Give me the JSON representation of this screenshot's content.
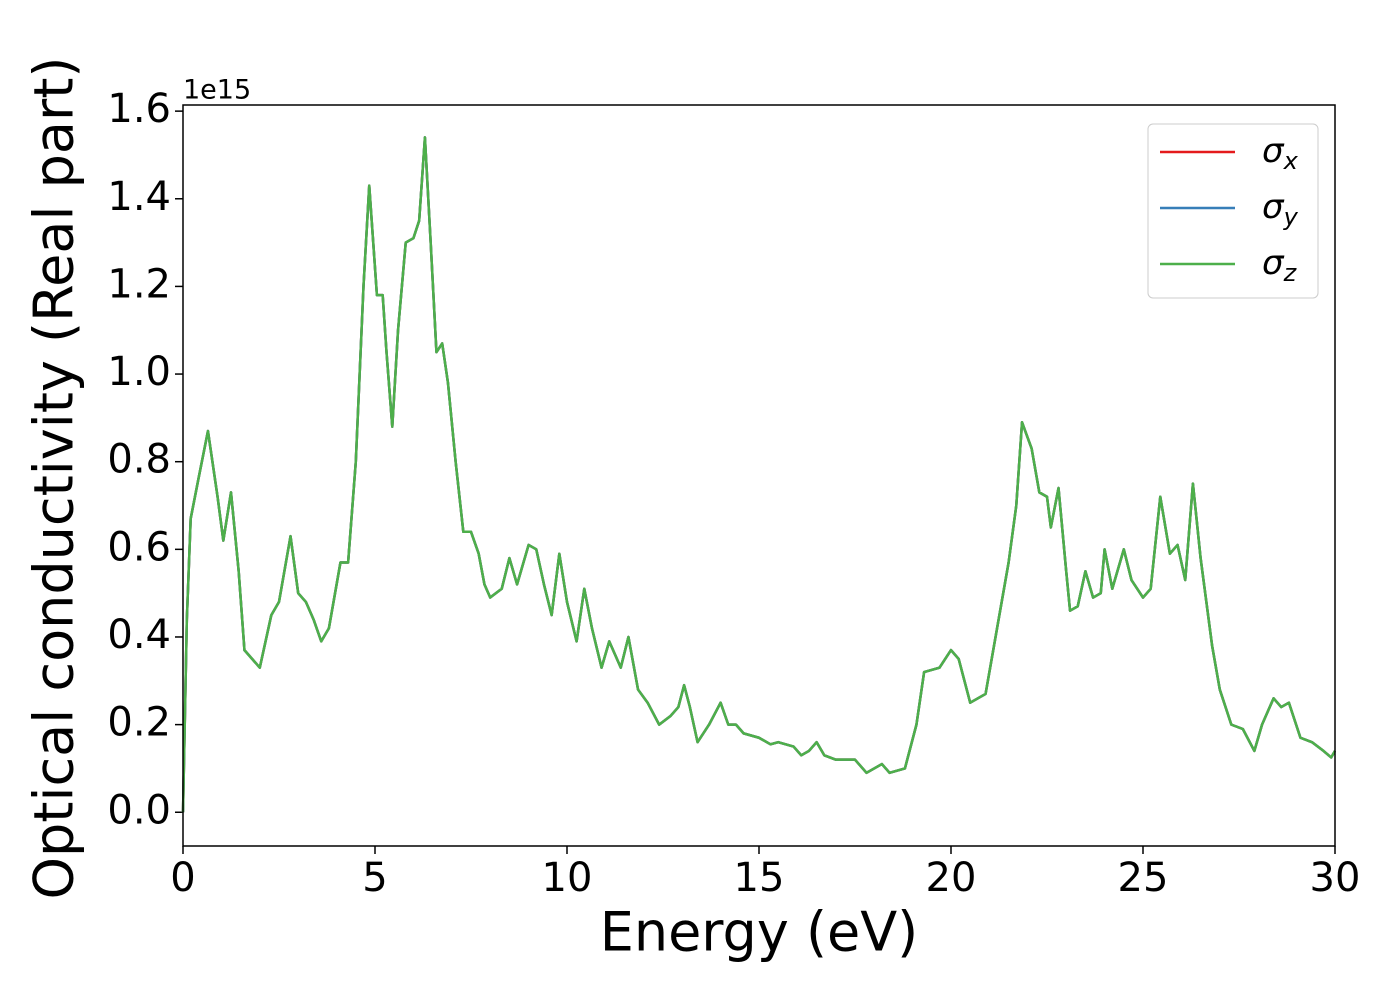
{
  "chart_data": {
    "type": "line",
    "x_label": "Energy (eV)",
    "y_label": "Optical conductivity (Real part)",
    "y_offset_label": "1e15",
    "xlim": [
      0,
      30
    ],
    "xticks": [
      0,
      5,
      10,
      15,
      20,
      25,
      30
    ],
    "ylim": [
      -0.077,
      1.614
    ],
    "yticks": [
      {
        "value": 0,
        "label": "0.0"
      },
      {
        "value": 0.2,
        "label": "0.2"
      },
      {
        "value": 0.4,
        "label": "0.4"
      },
      {
        "value": 0.6,
        "label": "0.6"
      },
      {
        "value": 0.8,
        "label": "0.8"
      },
      {
        "value": 1,
        "label": "1.0"
      },
      {
        "value": 1.2,
        "label": "1.2"
      },
      {
        "value": 1.4,
        "label": "1.4"
      },
      {
        "value": 1.6,
        "label": "1.6"
      }
    ],
    "legend": "upper right",
    "x": [
      0,
      0.1,
      0.2,
      0.4,
      0.65,
      0.9,
      1.05,
      1.25,
      1.45,
      1.6,
      2.0,
      2.3,
      2.5,
      2.8,
      3.0,
      3.2,
      3.4,
      3.6,
      3.8,
      4.1,
      4.3,
      4.5,
      4.7,
      4.85,
      5.05,
      5.2,
      5.3,
      5.45,
      5.6,
      5.8,
      6.0,
      6.15,
      6.3,
      6.45,
      6.6,
      6.75,
      6.9,
      7.1,
      7.3,
      7.5,
      7.7,
      7.85,
      8.0,
      8.3,
      8.5,
      8.7,
      9.0,
      9.2,
      9.4,
      9.6,
      9.8,
      10.0,
      10.25,
      10.45,
      10.65,
      10.9,
      11.1,
      11.4,
      11.6,
      11.85,
      12.1,
      12.4,
      12.7,
      12.9,
      13.05,
      13.2,
      13.4,
      13.7,
      14.0,
      14.2,
      14.4,
      14.6,
      15.0,
      15.3,
      15.5,
      15.9,
      16.1,
      16.3,
      16.5,
      16.7,
      17.0,
      17.5,
      17.8,
      18.2,
      18.4,
      18.8,
      19.1,
      19.3,
      19.7,
      20.0,
      20.2,
      20.5,
      20.9,
      21.2,
      21.5,
      21.7,
      21.85,
      22.1,
      22.3,
      22.5,
      22.6,
      22.8,
      23.0,
      23.1,
      23.3,
      23.5,
      23.7,
      23.9,
      24.0,
      24.2,
      24.5,
      24.7,
      25.0,
      25.2,
      25.45,
      25.7,
      25.9,
      26.1,
      26.3,
      26.5,
      26.8,
      27.0,
      27.3,
      27.6,
      27.9,
      28.1,
      28.4,
      28.6,
      28.8,
      29.1,
      29.4,
      29.7,
      29.9,
      30.0
    ],
    "series": [
      {
        "name": "σx",
        "color": "#e41a1c",
        "values": [
          0,
          0.44,
          0.67,
          0.76,
          0.87,
          0.72,
          0.62,
          0.73,
          0.55,
          0.37,
          0.33,
          0.45,
          0.48,
          0.63,
          0.5,
          0.48,
          0.44,
          0.39,
          0.42,
          0.57,
          0.57,
          0.8,
          1.2,
          1.43,
          1.18,
          1.18,
          1.05,
          0.88,
          1.1,
          1.3,
          1.31,
          1.35,
          1.54,
          1.3,
          1.05,
          1.07,
          0.98,
          0.8,
          0.64,
          0.64,
          0.59,
          0.52,
          0.49,
          0.51,
          0.58,
          0.52,
          0.61,
          0.6,
          0.52,
          0.45,
          0.59,
          0.48,
          0.39,
          0.51,
          0.42,
          0.33,
          0.39,
          0.33,
          0.4,
          0.28,
          0.25,
          0.2,
          0.22,
          0.24,
          0.29,
          0.24,
          0.16,
          0.2,
          0.25,
          0.2,
          0.2,
          0.18,
          0.17,
          0.155,
          0.16,
          0.15,
          0.13,
          0.14,
          0.16,
          0.13,
          0.12,
          0.12,
          0.09,
          0.11,
          0.09,
          0.1,
          0.2,
          0.32,
          0.33,
          0.37,
          0.35,
          0.25,
          0.27,
          0.42,
          0.57,
          0.7,
          0.89,
          0.83,
          0.73,
          0.72,
          0.65,
          0.74,
          0.55,
          0.46,
          0.47,
          0.55,
          0.49,
          0.5,
          0.6,
          0.51,
          0.6,
          0.53,
          0.49,
          0.51,
          0.72,
          0.59,
          0.61,
          0.53,
          0.75,
          0.58,
          0.38,
          0.28,
          0.2,
          0.19,
          0.14,
          0.2,
          0.26,
          0.24,
          0.25,
          0.17,
          0.16,
          0.14,
          0.125,
          0.14
        ]
      },
      {
        "name": "σy",
        "color": "#377eb8",
        "values": [
          0,
          0.44,
          0.67,
          0.76,
          0.87,
          0.72,
          0.62,
          0.73,
          0.55,
          0.37,
          0.33,
          0.45,
          0.48,
          0.63,
          0.5,
          0.48,
          0.44,
          0.39,
          0.42,
          0.57,
          0.57,
          0.8,
          1.2,
          1.43,
          1.18,
          1.18,
          1.05,
          0.88,
          1.1,
          1.3,
          1.31,
          1.35,
          1.54,
          1.3,
          1.05,
          1.07,
          0.98,
          0.8,
          0.64,
          0.64,
          0.59,
          0.52,
          0.49,
          0.51,
          0.58,
          0.52,
          0.61,
          0.6,
          0.52,
          0.45,
          0.59,
          0.48,
          0.39,
          0.51,
          0.42,
          0.33,
          0.39,
          0.33,
          0.4,
          0.28,
          0.25,
          0.2,
          0.22,
          0.24,
          0.29,
          0.24,
          0.16,
          0.2,
          0.25,
          0.2,
          0.2,
          0.18,
          0.17,
          0.155,
          0.16,
          0.15,
          0.13,
          0.14,
          0.16,
          0.13,
          0.12,
          0.12,
          0.09,
          0.11,
          0.09,
          0.1,
          0.2,
          0.32,
          0.33,
          0.37,
          0.35,
          0.25,
          0.27,
          0.42,
          0.57,
          0.7,
          0.89,
          0.83,
          0.73,
          0.72,
          0.65,
          0.74,
          0.55,
          0.46,
          0.47,
          0.55,
          0.49,
          0.5,
          0.6,
          0.51,
          0.6,
          0.53,
          0.49,
          0.51,
          0.72,
          0.59,
          0.61,
          0.53,
          0.75,
          0.58,
          0.38,
          0.28,
          0.2,
          0.19,
          0.14,
          0.2,
          0.26,
          0.24,
          0.25,
          0.17,
          0.16,
          0.14,
          0.125,
          0.14
        ]
      },
      {
        "name": "σz",
        "color": "#4daf4a",
        "values": [
          0,
          0.44,
          0.67,
          0.76,
          0.87,
          0.72,
          0.62,
          0.73,
          0.55,
          0.37,
          0.33,
          0.45,
          0.48,
          0.63,
          0.5,
          0.48,
          0.44,
          0.39,
          0.42,
          0.57,
          0.57,
          0.8,
          1.2,
          1.43,
          1.18,
          1.18,
          1.05,
          0.88,
          1.1,
          1.3,
          1.31,
          1.35,
          1.54,
          1.3,
          1.05,
          1.07,
          0.98,
          0.8,
          0.64,
          0.64,
          0.59,
          0.52,
          0.49,
          0.51,
          0.58,
          0.52,
          0.61,
          0.6,
          0.52,
          0.45,
          0.59,
          0.48,
          0.39,
          0.51,
          0.42,
          0.33,
          0.39,
          0.33,
          0.4,
          0.28,
          0.25,
          0.2,
          0.22,
          0.24,
          0.29,
          0.24,
          0.16,
          0.2,
          0.25,
          0.2,
          0.2,
          0.18,
          0.17,
          0.155,
          0.16,
          0.15,
          0.13,
          0.14,
          0.16,
          0.13,
          0.12,
          0.12,
          0.09,
          0.11,
          0.09,
          0.1,
          0.2,
          0.32,
          0.33,
          0.37,
          0.35,
          0.25,
          0.27,
          0.42,
          0.57,
          0.7,
          0.89,
          0.83,
          0.73,
          0.72,
          0.65,
          0.74,
          0.55,
          0.46,
          0.47,
          0.55,
          0.49,
          0.5,
          0.6,
          0.51,
          0.6,
          0.53,
          0.49,
          0.51,
          0.72,
          0.59,
          0.61,
          0.53,
          0.75,
          0.58,
          0.38,
          0.28,
          0.2,
          0.19,
          0.14,
          0.2,
          0.26,
          0.24,
          0.25,
          0.17,
          0.16,
          0.14,
          0.125,
          0.14
        ]
      }
    ]
  }
}
